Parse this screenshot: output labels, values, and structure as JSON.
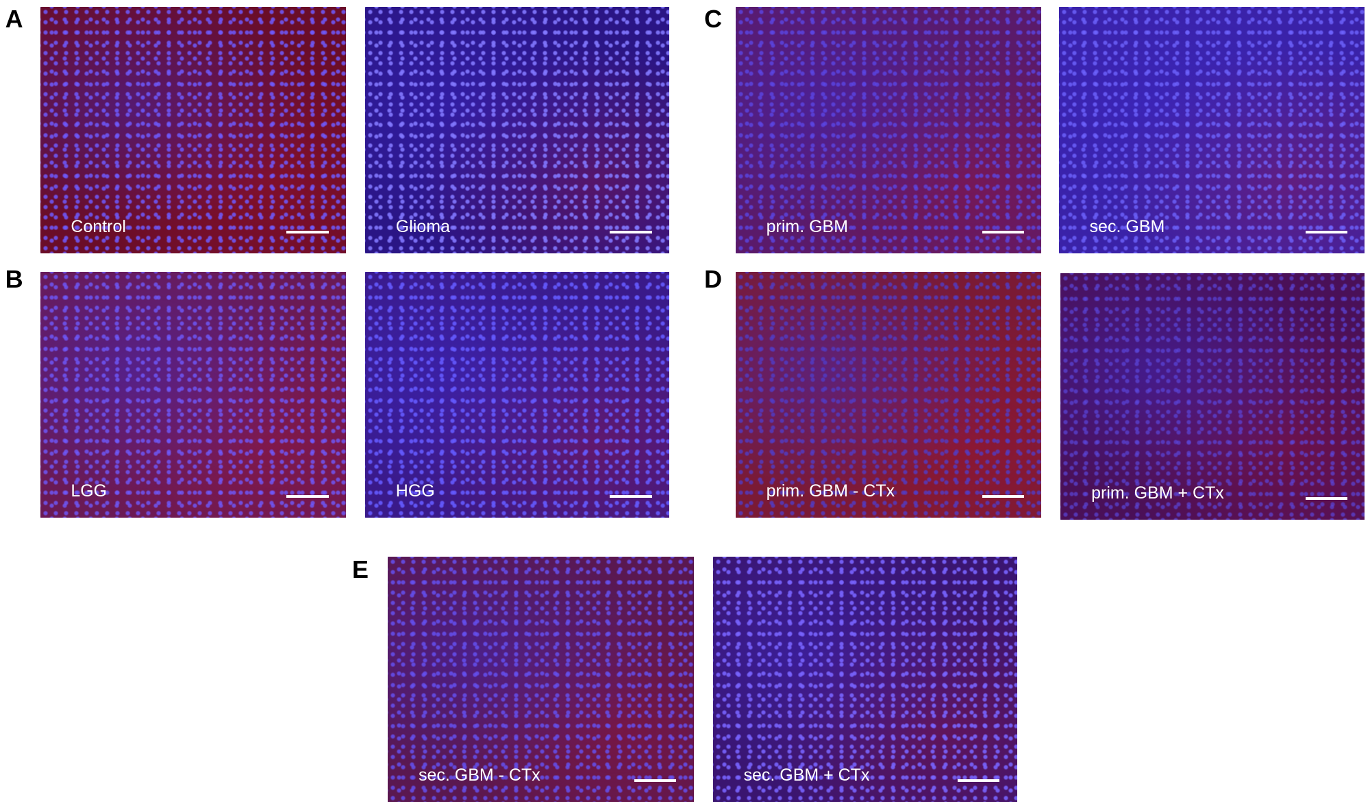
{
  "panels": [
    {
      "letter": "A",
      "images": [
        {
          "caption": "Control"
        },
        {
          "caption": "Glioma"
        }
      ]
    },
    {
      "letter": "B",
      "images": [
        {
          "caption": "LGG"
        },
        {
          "caption": "HGG"
        }
      ]
    },
    {
      "letter": "C",
      "images": [
        {
          "caption": "prim. GBM"
        },
        {
          "caption": "sec. GBM"
        }
      ]
    },
    {
      "letter": "D",
      "images": [
        {
          "caption": "prim. GBM - CTx"
        },
        {
          "caption": "prim. GBM + CTx"
        }
      ]
    },
    {
      "letter": "E",
      "images": [
        {
          "caption": "sec. GBM - CTx"
        },
        {
          "caption": "sec. GBM + CTx"
        }
      ]
    }
  ]
}
